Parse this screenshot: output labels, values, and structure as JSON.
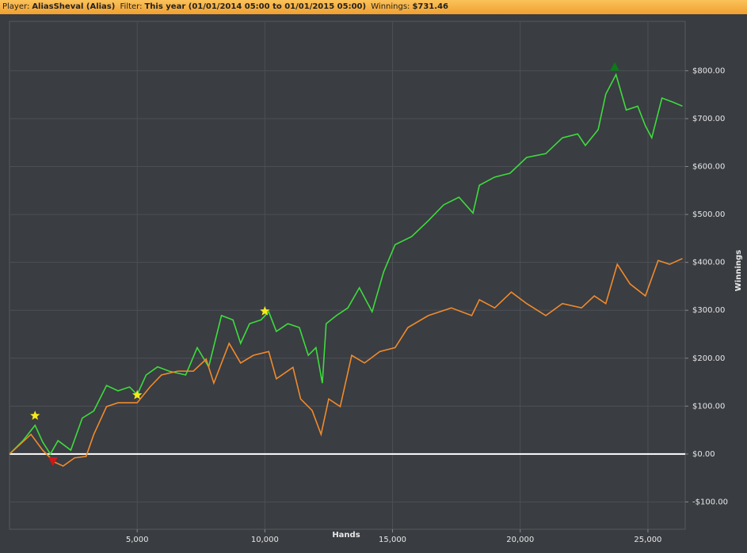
{
  "header": {
    "player_label": "Player:",
    "player": "AliasSheval (Alias)",
    "filter_label": "Filter:",
    "filter": "This year (01/01/2014 05:00 to 01/01/2015 05:00)",
    "winnings_label": "Winnings:",
    "winnings": "$731.46"
  },
  "chart_data": {
    "type": "line",
    "xlabel": "Hands",
    "ylabel": "Winnings",
    "xlim": [
      0,
      26460
    ],
    "ylim": [
      -157,
      903
    ],
    "xticks": [
      {
        "value": 5000,
        "label": "5,000"
      },
      {
        "value": 10000,
        "label": "10,000"
      },
      {
        "value": 15000,
        "label": "15,000"
      },
      {
        "value": 20000,
        "label": "20,000"
      },
      {
        "value": 25000,
        "label": "25,000"
      }
    ],
    "yticks": [
      {
        "value": -100,
        "label": "-$100.00"
      },
      {
        "value": 0,
        "label": "$0.00"
      },
      {
        "value": 100,
        "label": "$100.00"
      },
      {
        "value": 200,
        "label": "$200.00"
      },
      {
        "value": 300,
        "label": "$300.00"
      },
      {
        "value": 400,
        "label": "$400.00"
      },
      {
        "value": 500,
        "label": "$500.00"
      },
      {
        "value": 600,
        "label": "$600.00"
      },
      {
        "value": 700,
        "label": "$700.00"
      },
      {
        "value": 800,
        "label": "$800.00"
      }
    ],
    "grid": true,
    "zero_line_color": "#ffffff",
    "series": [
      {
        "color": "#3ddc3d",
        "x": [
          0,
          528,
          1000,
          1300,
          1600,
          1900,
          2400,
          2850,
          3300,
          3800,
          4250,
          4700,
          5000,
          5350,
          5800,
          6250,
          6900,
          7350,
          7800,
          8300,
          8750,
          9050,
          9400,
          9850,
          10150,
          10450,
          10900,
          11350,
          11700,
          12000,
          12250,
          12400,
          12800,
          13250,
          13700,
          14200,
          14650,
          15100,
          15750,
          16400,
          17000,
          17600,
          18150,
          18400,
          19000,
          19600,
          20250,
          21000,
          21650,
          22250,
          22550,
          23050,
          23350,
          23750,
          24150,
          24600,
          24900,
          25150,
          25550,
          26000,
          26350
        ],
        "values": [
          0,
          28,
          60,
          25,
          0,
          28,
          8,
          75,
          90,
          143,
          132,
          140,
          124,
          165,
          182,
          173,
          165,
          222,
          182,
          289,
          280,
          231,
          272,
          280,
          297,
          256,
          272,
          264,
          206,
          222,
          148,
          272,
          289,
          305,
          347,
          297,
          380,
          437,
          454,
          487,
          520,
          536,
          503,
          561,
          578,
          586,
          619,
          627,
          660,
          668,
          644,
          677,
          751,
          792,
          718,
          726,
          685,
          660,
          743,
          734,
          726
        ]
      },
      {
        "color": "#f08a2c",
        "x": [
          0,
          840,
          1300,
          1770,
          2100,
          2550,
          3000,
          3300,
          3800,
          4250,
          5000,
          5500,
          5950,
          6580,
          7200,
          7700,
          8000,
          8600,
          9050,
          9550,
          10150,
          10450,
          11100,
          11400,
          11850,
          12200,
          12500,
          12950,
          13400,
          13900,
          14500,
          15100,
          15600,
          16400,
          17300,
          18100,
          18400,
          19000,
          19650,
          20250,
          21000,
          21650,
          22400,
          22900,
          23350,
          23800,
          24300,
          24900,
          25400,
          25850,
          26350
        ],
        "values": [
          0,
          41,
          8,
          -17,
          -25,
          -8,
          -5,
          41,
          99,
          107,
          107,
          140,
          165,
          173,
          173,
          198,
          148,
          231,
          190,
          206,
          214,
          157,
          181,
          115,
          91,
          41,
          115,
          99,
          206,
          190,
          214,
          222,
          264,
          289,
          305,
          289,
          322,
          305,
          338,
          314,
          289,
          314,
          305,
          330,
          314,
          396,
          355,
          330,
          404,
          396,
          408
        ]
      }
    ],
    "markers": [
      {
        "x": 1000,
        "y": 80,
        "shape": "star",
        "color": "#f7ea1c"
      },
      {
        "x": 5000,
        "y": 123,
        "shape": "star",
        "color": "#f7ea1c"
      },
      {
        "x": 10000,
        "y": 298,
        "shape": "star",
        "color": "#f7ea1c"
      },
      {
        "x": 1700,
        "y": -15,
        "shape": "triangle-down",
        "color": "#d01818"
      },
      {
        "x": 23700,
        "y": 808,
        "shape": "triangle-up",
        "color": "#0d7a1a"
      }
    ]
  }
}
